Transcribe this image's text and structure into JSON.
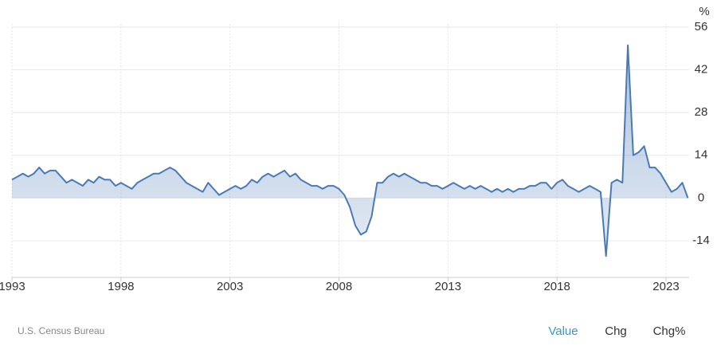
{
  "chart_data": {
    "type": "line",
    "unit": "%",
    "x": [
      1993,
      1993.25,
      1993.5,
      1993.75,
      1994,
      1994.25,
      1994.5,
      1994.75,
      1995,
      1995.25,
      1995.5,
      1995.75,
      1996,
      1996.25,
      1996.5,
      1996.75,
      1997,
      1997.25,
      1997.5,
      1997.75,
      1998,
      1998.25,
      1998.5,
      1998.75,
      1999,
      1999.25,
      1999.5,
      1999.75,
      2000,
      2000.25,
      2000.5,
      2000.75,
      2001,
      2001.25,
      2001.5,
      2001.75,
      2002,
      2002.25,
      2002.5,
      2002.75,
      2003,
      2003.25,
      2003.5,
      2003.75,
      2004,
      2004.25,
      2004.5,
      2004.75,
      2005,
      2005.25,
      2005.5,
      2005.75,
      2006,
      2006.25,
      2006.5,
      2006.75,
      2007,
      2007.25,
      2007.5,
      2007.75,
      2008,
      2008.25,
      2008.5,
      2008.75,
      2009,
      2009.25,
      2009.5,
      2009.75,
      2010,
      2010.25,
      2010.5,
      2010.75,
      2011,
      2011.25,
      2011.5,
      2011.75,
      2012,
      2012.25,
      2012.5,
      2012.75,
      2013,
      2013.25,
      2013.5,
      2013.75,
      2014,
      2014.25,
      2014.5,
      2014.75,
      2015,
      2015.25,
      2015.5,
      2015.75,
      2016,
      2016.25,
      2016.5,
      2016.75,
      2017,
      2017.25,
      2017.5,
      2017.75,
      2018,
      2018.25,
      2018.5,
      2018.75,
      2019,
      2019.25,
      2019.5,
      2019.75,
      2020,
      2020.25,
      2020.5,
      2020.75,
      2021,
      2021.25,
      2021.5,
      2021.75,
      2022,
      2022.25,
      2022.5,
      2022.75,
      2023,
      2023.25,
      2023.5,
      2023.75,
      2024
    ],
    "series": [
      {
        "color": "#4a7ab5",
        "values": [
          6,
          7,
          8,
          7,
          8,
          10,
          8,
          9,
          9,
          7,
          5,
          6,
          5,
          4,
          6,
          5,
          7,
          6,
          6,
          4,
          5,
          4,
          3,
          5,
          6,
          7,
          8,
          8,
          9,
          10,
          9,
          7,
          5,
          4,
          3,
          2,
          5,
          3,
          1,
          2,
          3,
          4,
          3,
          4,
          6,
          5,
          7,
          8,
          7,
          8,
          9,
          7,
          8,
          6,
          5,
          4,
          4,
          3,
          4,
          4,
          3,
          1,
          -3,
          -9,
          -12,
          -11,
          -6,
          5,
          5,
          7,
          8,
          7,
          8,
          7,
          6,
          5,
          5,
          4,
          4,
          3,
          4,
          5,
          4,
          3,
          4,
          3,
          4,
          3,
          2,
          3,
          2,
          3,
          2,
          3,
          3,
          4,
          4,
          5,
          5,
          3,
          5,
          6,
          4,
          3,
          2,
          3,
          4,
          3,
          2,
          -19,
          5,
          6,
          5,
          50,
          14,
          15,
          17,
          10,
          10,
          8,
          5,
          2,
          3,
          5,
          0
        ]
      }
    ],
    "xlim": [
      1993,
      2024.06
    ],
    "xticks": [
      1993,
      1998,
      2003,
      2008,
      2013,
      2018,
      2023
    ],
    "ylim": [
      -26,
      57
    ],
    "yticks": [
      -14,
      0,
      14,
      28,
      42,
      56
    ],
    "grid": true,
    "source": "U.S. Census Bureau",
    "buttons": [
      "Value",
      "Chg",
      "Chg%"
    ],
    "active_button": 0
  }
}
